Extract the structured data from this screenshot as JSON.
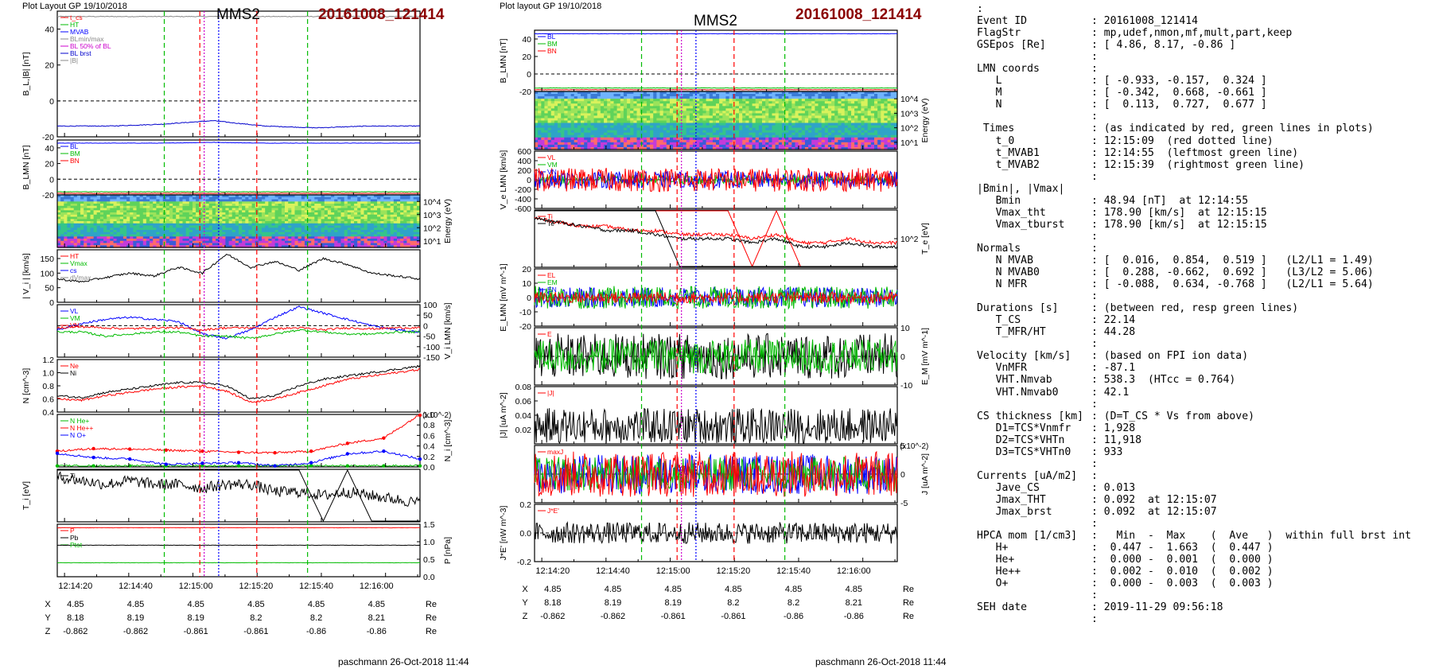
{
  "left_plot": {
    "layout_label": "Plot Layout GP 19/10/2018",
    "spacecraft": "MMS2",
    "event": "20161008_121414",
    "footer": "paschmann 26-Oct-2018 11:44",
    "time_ticks": [
      "12:14:20",
      "12:14:40",
      "12:15:00",
      "12:15:20",
      "12:15:40",
      "12:16:00"
    ],
    "pos_rows": [
      {
        "label": "X",
        "values": [
          "4.85",
          "4.85",
          "4.85",
          "4.85",
          "4.85",
          "4.85"
        ],
        "unit": "Re"
      },
      {
        "label": "Y",
        "values": [
          "8.18",
          "8.19",
          "8.19",
          "8.2",
          "8.2",
          "8.21"
        ],
        "unit": "Re"
      },
      {
        "label": "Z",
        "values": [
          "-0.862",
          "-0.862",
          "-0.861",
          "-0.861",
          "-0.86",
          "-0.86"
        ],
        "unit": "Re"
      }
    ]
  },
  "right_plot": {
    "layout_label": "Plot layout GP 19/10/2018",
    "spacecraft": "MMS2",
    "event": "20161008_121414",
    "footer": "paschmann 26-Oct-2018 11:44",
    "time_ticks": [
      "12:14:20",
      "12:14:40",
      "12:15:00",
      "12:15:20",
      "12:15:40",
      "12:16:00"
    ],
    "pos_rows": [
      {
        "label": "X",
        "values": [
          "4.85",
          "4.85",
          "4.85",
          "4.85",
          "4.85",
          "4.85"
        ],
        "unit": "Re"
      },
      {
        "label": "Y",
        "values": [
          "8.18",
          "8.19",
          "8.19",
          "8.2",
          "8.2",
          "8.21"
        ],
        "unit": "Re"
      },
      {
        "label": "Z",
        "values": [
          "-0.862",
          "-0.862",
          "-0.861",
          "-0.861",
          "-0.86",
          "-0.86"
        ],
        "unit": "Re"
      }
    ]
  },
  "info_lines": [
    {
      "k": ":",
      "v": ""
    },
    {
      "k": "Event ID",
      "v": ": 20161008_121414"
    },
    {
      "k": "FlagStr",
      "v": ": mp,udef,nmon,mf,mult,part,keep"
    },
    {
      "k": "GSEpos [Re]",
      "v": ": [ 4.86, 8.17, -0.86 ]"
    },
    {
      "k": "",
      "v": ":"
    },
    {
      "k": "LMN coords",
      "v": ":"
    },
    {
      "k": "   L",
      "v": ": [ -0.933, -0.157,  0.324 ]"
    },
    {
      "k": "   M",
      "v": ": [ -0.342,  0.668, -0.661 ]"
    },
    {
      "k": "   N",
      "v": ": [  0.113,  0.727,  0.677 ]"
    },
    {
      "k": "",
      "v": ":"
    },
    {
      "k": " Times",
      "v": ": (as indicated by red, green lines in plots)"
    },
    {
      "k": "   t_0",
      "v": ": 12:15:09  (red dotted line)"
    },
    {
      "k": "   t_MVAB1",
      "v": ": 12:14:55  (leftmost green line)"
    },
    {
      "k": "   t_MVAB2",
      "v": ": 12:15:39  (rightmost green line)"
    },
    {
      "k": "",
      "v": ":"
    },
    {
      "k": "|Bmin|, |Vmax|",
      "v": ""
    },
    {
      "k": "   Bmin",
      "v": ": 48.94 [nT]  at 12:14:55"
    },
    {
      "k": "   Vmax_tht",
      "v": ": 178.90 [km/s]  at 12:15:15"
    },
    {
      "k": "   Vmax_tburst",
      "v": ": 178.90 [km/s]  at 12:15:15"
    },
    {
      "k": "",
      "v": ":"
    },
    {
      "k": "Normals",
      "v": ":"
    },
    {
      "k": "   N MVAB",
      "v": ": [  0.016,  0.854,  0.519 ]   (L2/L1 = 1.49)"
    },
    {
      "k": "   N MVAB0",
      "v": ": [  0.288, -0.662,  0.692 ]   (L3/L2 = 5.06)"
    },
    {
      "k": "   N MFR",
      "v": ": [ -0.088,  0.634, -0.768 ]   (L2/L1 = 5.64)"
    },
    {
      "k": "",
      "v": ":"
    },
    {
      "k": "Durations [s]",
      "v": ": (between red, resp green lines)"
    },
    {
      "k": "   T_CS",
      "v": ": 22.14"
    },
    {
      "k": "   T_MFR/HT",
      "v": ": 44.28"
    },
    {
      "k": "",
      "v": ":"
    },
    {
      "k": "Velocity [km/s]",
      "v": ": (based on FPI ion data)"
    },
    {
      "k": "   VnMFR",
      "v": ": -87.1"
    },
    {
      "k": "   VHT.Nmvab",
      "v": ": 538.3  (HTcc = 0.764)"
    },
    {
      "k": "   VHT.Nmvab0",
      "v": ": 42.1"
    },
    {
      "k": "",
      "v": ":"
    },
    {
      "k": "CS thickness [km]",
      "v": ": (D=T_CS * Vs from above)"
    },
    {
      "k": "   D1=TCS*Vnmfr",
      "v": ": 1,928"
    },
    {
      "k": "   D2=TCS*VHTn",
      "v": ": 11,918"
    },
    {
      "k": "   D3=TCS*VHTn0",
      "v": ": 933"
    },
    {
      "k": "",
      "v": ":"
    },
    {
      "k": "Currents [uA/m2]",
      "v": ":"
    },
    {
      "k": "   Jave_CS",
      "v": ": 0.013"
    },
    {
      "k": "   Jmax_THT",
      "v": ": 0.092  at 12:15:07"
    },
    {
      "k": "   Jmax_brst",
      "v": ": 0.092  at 12:15:07"
    },
    {
      "k": "",
      "v": ":"
    },
    {
      "k": "HPCA mom [1/cm3]",
      "v": ":   Min  -  Max    (  Ave   )  within full brst int"
    },
    {
      "k": "   H+",
      "v": ":  0.447 -  1.663  (  0.447 )"
    },
    {
      "k": "   He+",
      "v": ":  0.000 -  0.001  (  0.000 )"
    },
    {
      "k": "   He++",
      "v": ":  0.002 -  0.010  (  0.002 )"
    },
    {
      "k": "   O+",
      "v": ":  0.000 -  0.003  (  0.003 )"
    },
    {
      "k": "",
      "v": ":"
    },
    {
      "k": "SEH date",
      "v": ": 2019-11-29 09:56:18"
    },
    {
      "k": "",
      "v": ":"
    }
  ],
  "chart_data": [
    {
      "type": "line",
      "panel": "left-1",
      "ylabel": "B_L,|B| [nT]",
      "ylim": [
        -20,
        50
      ],
      "yticks": [
        "40",
        "20",
        "0",
        "-20"
      ],
      "legend": [
        "t_cs",
        "HT",
        "MVAB",
        "BLmin/max",
        "BL 50% of BL",
        "BL brst",
        "|B|"
      ],
      "series": [
        {
          "name": "|B|",
          "color": "#888888",
          "values": [
            47,
            47,
            47,
            47,
            47,
            47,
            47,
            47
          ]
        },
        {
          "name": "BL brst",
          "color": "#0000cc",
          "values": [
            -14,
            -14,
            -13,
            -11,
            -14,
            -15,
            -14,
            -14
          ]
        }
      ]
    },
    {
      "type": "line",
      "panel": "left-2",
      "ylabel": "B_LMN [nT]",
      "ylim": [
        -20,
        50
      ],
      "yticks": [
        "40",
        "20",
        "0",
        "-20"
      ],
      "legend": [
        "BL",
        "BM",
        "BN"
      ],
      "series": [
        {
          "name": "BL",
          "color": "#0000ff",
          "values": [
            46,
            46,
            46,
            47,
            46,
            46,
            46,
            46
          ]
        },
        {
          "name": "BM",
          "color": "#00bb00",
          "values": [
            -16,
            -16,
            -16,
            -16,
            -16,
            -16,
            -16,
            -16
          ]
        },
        {
          "name": "BN",
          "color": "#ff0000",
          "values": [
            -18,
            -18,
            -18,
            -18,
            -18,
            -18,
            -18,
            -18
          ]
        }
      ]
    },
    {
      "type": "heatmap",
      "panel": "left-3",
      "ylabel": "Energy (eV)",
      "yticks": [
        "10^4",
        "10^3",
        "10^2",
        "10^1"
      ]
    },
    {
      "type": "line",
      "panel": "left-4",
      "ylabel": "| V_i | [km/s]",
      "ylim": [
        0,
        180
      ],
      "yticks": [
        "150",
        "100",
        "50",
        "0"
      ],
      "legend": [
        "HT",
        "Vmax",
        "cs",
        "dVmax"
      ],
      "series": [
        {
          "name": "|Vi|",
          "color": "#000000",
          "values": [
            80,
            70,
            85,
            100,
            90,
            120,
            100,
            165,
            120,
            140,
            110,
            150,
            130,
            100,
            90,
            80
          ]
        }
      ]
    },
    {
      "type": "line",
      "panel": "left-5",
      "ylabel": "V_i LMN [km/s]",
      "ylim": [
        -150,
        100
      ],
      "yticks": [
        "100",
        "50",
        "0",
        "-50",
        "-100",
        "-150"
      ],
      "legend": [
        "VL",
        "VM",
        "VN"
      ],
      "series": [
        {
          "name": "VL",
          "color": "#0000ff",
          "values": [
            -20,
            10,
            30,
            40,
            30,
            20,
            -40,
            -60,
            -20,
            40,
            90,
            60,
            30,
            0,
            -20,
            -30
          ]
        },
        {
          "name": "VM",
          "color": "#00bb00",
          "values": [
            -30,
            -30,
            -50,
            -40,
            -30,
            -30,
            -50,
            -50,
            -60,
            -40,
            -20,
            -30,
            -40,
            -40,
            -30,
            -30
          ]
        },
        {
          "name": "VN",
          "color": "#ff0000",
          "values": [
            -10,
            -5,
            -10,
            -15,
            -10,
            -10,
            -20,
            -10,
            -10,
            -15,
            -10,
            -20,
            -10,
            -15,
            -10,
            -10
          ]
        }
      ]
    },
    {
      "type": "line",
      "panel": "left-6",
      "ylabel": "N [cm^-3]",
      "ylim": [
        0.4,
        1.2
      ],
      "yticks": [
        "1.2",
        "1.0",
        "0.8",
        "0.6",
        "0.4"
      ],
      "legend": [
        "Ne",
        "Ni"
      ],
      "series": [
        {
          "name": "Ne",
          "color": "#ff0000",
          "values": [
            0.6,
            0.58,
            0.65,
            0.7,
            0.75,
            0.78,
            0.8,
            0.72,
            0.55,
            0.6,
            0.7,
            0.8,
            0.9,
            0.95,
            1.0,
            1.05
          ]
        },
        {
          "name": "Ni",
          "color": "#000000",
          "values": [
            0.65,
            0.62,
            0.7,
            0.75,
            0.8,
            0.85,
            0.85,
            0.8,
            0.6,
            0.65,
            0.8,
            0.9,
            0.95,
            1.0,
            1.05,
            1.1
          ]
        }
      ]
    },
    {
      "type": "line",
      "panel": "left-7",
      "ylabel": "N_i [cm^-3]",
      "ylim": [
        0,
        1.0
      ],
      "yticks": [
        "1.0",
        "0.8",
        "0.6",
        "0.4",
        "0.2",
        "0.0"
      ],
      "multiplier": "x10^-2",
      "legend": [
        "N He+",
        "N He++",
        "N O+"
      ],
      "series": [
        {
          "name": "N He+",
          "color": "#00bb00",
          "values": [
            0.02,
            0.02,
            0.02,
            0.02,
            0.02,
            0.02,
            0.02,
            0.02,
            0.02,
            0.02,
            0.02
          ]
        },
        {
          "name": "N He++",
          "color": "#ff0000",
          "values": [
            0.3,
            0.35,
            0.34,
            0.32,
            0.3,
            0.28,
            0.27,
            0.3,
            0.45,
            0.55,
            1.0
          ]
        },
        {
          "name": "N O+",
          "color": "#0000ff",
          "values": [
            0.26,
            0.18,
            0.15,
            0.05,
            0.07,
            0.08,
            0.02,
            0.08,
            0.25,
            0.3,
            0.15
          ]
        }
      ]
    },
    {
      "type": "line",
      "panel": "left-8",
      "ylabel": "T_i [eV]",
      "legend": [
        "Ti"
      ],
      "series": [
        {
          "name": "Ti",
          "color": "#000000",
          "values": [
            5,
            4,
            3,
            4,
            3,
            3,
            2,
            3,
            3,
            1,
            1,
            0,
            1,
            0,
            -1,
            -2
          ]
        }
      ]
    },
    {
      "type": "line",
      "panel": "left-9",
      "ylabel": "P [nPa]",
      "ylim": [
        0,
        1.5
      ],
      "yticks": [
        "1.5",
        "1.0",
        "0.5",
        "0.0"
      ],
      "legend": [
        "P",
        "Pb",
        "Ptot"
      ],
      "series": [
        {
          "name": "P",
          "color": "#ff0000",
          "values": [
            1.4,
            1.4,
            1.4,
            1.4,
            1.4,
            1.4,
            1.4,
            1.4
          ]
        },
        {
          "name": "Pb",
          "color": "#000000",
          "values": [
            0.9,
            0.9,
            0.9,
            0.9,
            0.9,
            0.9,
            0.9,
            0.9
          ]
        },
        {
          "name": "Ptot",
          "color": "#00bb00",
          "values": [
            0.4,
            0.4,
            0.4,
            0.4,
            0.4,
            0.4,
            0.4,
            0.4
          ]
        }
      ]
    },
    {
      "type": "line",
      "panel": "right-1",
      "ylabel": "B_LMN [nT]",
      "ylim": [
        -20,
        50
      ],
      "yticks": [
        "40",
        "20",
        "0",
        "-20"
      ],
      "legend": [
        "BL",
        "BM",
        "BN"
      ],
      "series": [
        {
          "name": "BL",
          "color": "#0000ff",
          "values": [
            46,
            46,
            46,
            46,
            46,
            46,
            46,
            46
          ]
        },
        {
          "name": "BM",
          "color": "#00bb00",
          "values": [
            -16,
            -16,
            -16,
            -16,
            -16,
            -16,
            -16,
            -16
          ]
        },
        {
          "name": "BN",
          "color": "#ff0000",
          "values": [
            -18,
            -18,
            -18,
            -18,
            -18,
            -18,
            -18,
            -18
          ]
        }
      ]
    },
    {
      "type": "heatmap",
      "panel": "right-2",
      "ylabel": "Energy (eV)",
      "yticks": [
        "10^4",
        "10^3",
        "10^2",
        "10^1"
      ]
    },
    {
      "type": "line",
      "panel": "right-3",
      "ylabel": "V_e LMN [km/s]",
      "ylim": [
        -600,
        600
      ],
      "yticks": [
        "600",
        "400",
        "200",
        "0",
        "-200",
        "-400",
        "-600"
      ],
      "legend": [
        "VL",
        "VM",
        "VN"
      ]
    },
    {
      "type": "line",
      "panel": "right-4",
      "ylabel": "T_e [eV]",
      "yticks": [
        "10^2"
      ],
      "legend": [
        "Ti",
        "Te"
      ],
      "series": [
        {
          "name": "Ti",
          "color": "#ff0000",
          "values": [
            5,
            4,
            3,
            3,
            2,
            2,
            1,
            1,
            1,
            0,
            1,
            -1,
            -1,
            0,
            -1,
            -1
          ]
        },
        {
          "name": "Te",
          "color": "#000000",
          "values": [
            5,
            4,
            3,
            2,
            2,
            1,
            0,
            0,
            0,
            -1,
            0,
            -2,
            -2,
            -1,
            -2,
            -2
          ]
        }
      ]
    },
    {
      "type": "line",
      "panel": "right-5",
      "ylabel": "E_LMN [mV m^-1]",
      "ylim": [
        -20,
        20
      ],
      "yticks": [
        "20",
        "10",
        "0",
        "-10",
        "-20"
      ],
      "legend": [
        "EL",
        "EM",
        "EN"
      ]
    },
    {
      "type": "line",
      "panel": "right-6",
      "ylabel": "E_M [mV m^-1]",
      "ylim": [
        -10,
        10
      ],
      "yticks": [
        "10",
        "0",
        "-10"
      ],
      "legend": [
        "E"
      ]
    },
    {
      "type": "line",
      "panel": "right-7",
      "ylabel": "|J| [uA m^-2]",
      "ylim": [
        0,
        0.08
      ],
      "yticks": [
        "0.08",
        "0.06",
        "0.04",
        "0.02"
      ],
      "legend": [
        "|J|"
      ]
    },
    {
      "type": "line",
      "panel": "right-8",
      "ylabel": "J [uA m^-2]",
      "ylim": [
        -5,
        5
      ],
      "yticks": [
        "5",
        "0",
        "-5"
      ],
      "multiplier": "x10^-2",
      "legend": [
        "maxJ"
      ]
    },
    {
      "type": "line",
      "panel": "right-9",
      "ylabel": "J*E' [nW m^-3]",
      "ylim": [
        -0.2,
        0.2
      ],
      "yticks": [
        "0.2",
        "0.0",
        "-0.2"
      ],
      "legend": [
        "J*E'"
      ]
    }
  ]
}
